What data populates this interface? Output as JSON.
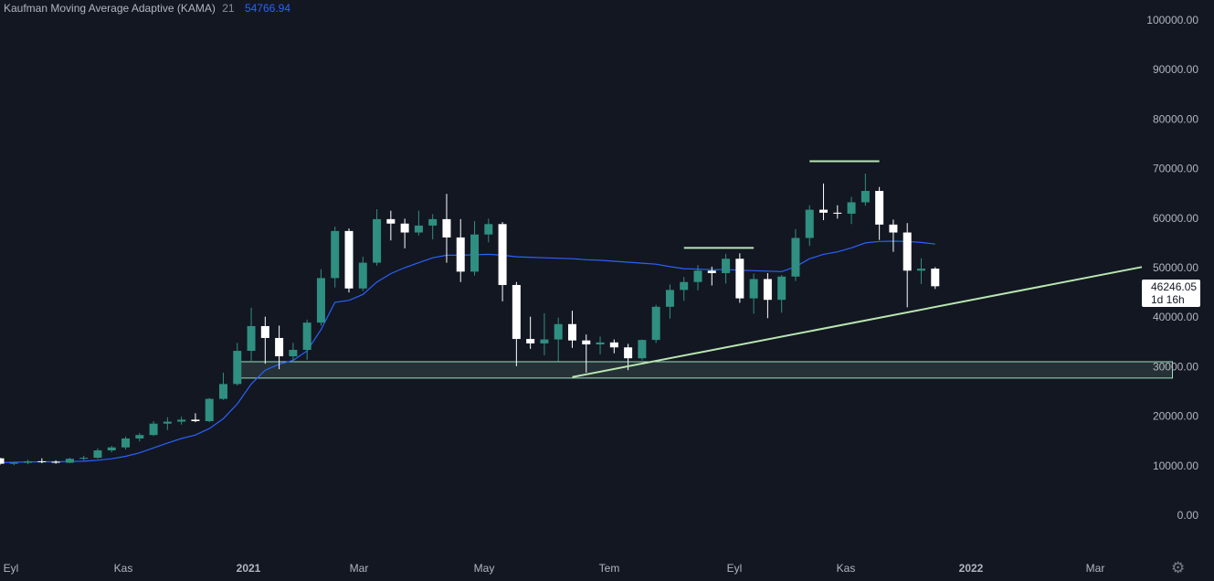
{
  "indicator": {
    "name": "Kaufman Moving Average Adaptive (KAMA)",
    "length": "21",
    "value": "54766.94"
  },
  "price_tag": {
    "price": "46246.05",
    "countdown": "1d 16h"
  },
  "settings_icon": "gear-icon",
  "colors": {
    "background": "#131722",
    "up": "#2f8f80",
    "down": "#ffffff",
    "kama": "#2962ff",
    "lines": "#b8e6b0",
    "zone": "#9fdfc0"
  },
  "chart_data": {
    "type": "candlestick",
    "interval": "1 week",
    "ylim": [
      0,
      100000
    ],
    "y_ticks": [
      "100000.00",
      "90000.00",
      "80000.00",
      "70000.00",
      "60000.00",
      "50000.00",
      "40000.00",
      "30000.00",
      "20000.00",
      "10000.00",
      "0.00"
    ],
    "x_ticks": [
      "Eyl",
      "Kas",
      "2021",
      "Mar",
      "May",
      "Tem",
      "Eyl",
      "Kas",
      "2022",
      "Mar"
    ],
    "x_tick_bold": [
      false,
      false,
      true,
      false,
      false,
      false,
      false,
      false,
      true,
      false
    ],
    "candles": [
      [
        11500,
        11600,
        10200,
        10400
      ],
      [
        10400,
        10800,
        10100,
        10600
      ],
      [
        10600,
        11200,
        10300,
        10900
      ],
      [
        10900,
        11500,
        10500,
        10800
      ],
      [
        10800,
        11100,
        10400,
        10600
      ],
      [
        10600,
        11600,
        10500,
        11400
      ],
      [
        11400,
        12000,
        11100,
        11600
      ],
      [
        11600,
        13500,
        11400,
        13100
      ],
      [
        13100,
        14000,
        12700,
        13700
      ],
      [
        13700,
        15900,
        13300,
        15500
      ],
      [
        15500,
        16600,
        14900,
        16200
      ],
      [
        16200,
        19000,
        16000,
        18500
      ],
      [
        18500,
        19800,
        17200,
        18900
      ],
      [
        18900,
        19900,
        18300,
        19300
      ],
      [
        19300,
        20600,
        18800,
        19000
      ],
      [
        19000,
        23700,
        18800,
        23500
      ],
      [
        23500,
        28800,
        23300,
        26500
      ],
      [
        26500,
        34800,
        26200,
        33200
      ],
      [
        33200,
        41900,
        31000,
        38200
      ],
      [
        38200,
        40100,
        30600,
        35800
      ],
      [
        35800,
        38300,
        29500,
        32100
      ],
      [
        32100,
        34800,
        30900,
        33400
      ],
      [
        33400,
        39500,
        31400,
        38900
      ],
      [
        38900,
        49700,
        38300,
        47900
      ],
      [
        47900,
        58300,
        46000,
        57400
      ],
      [
        57400,
        57900,
        45000,
        45800
      ],
      [
        45800,
        52200,
        45300,
        51000
      ],
      [
        51000,
        61800,
        50400,
        59800
      ],
      [
        59800,
        61500,
        55500,
        58900
      ],
      [
        58900,
        59900,
        53900,
        57100
      ],
      [
        57100,
        61500,
        56500,
        58500
      ],
      [
        58500,
        60800,
        55700,
        59800
      ],
      [
        59800,
        64900,
        51000,
        56100
      ],
      [
        56100,
        59800,
        47100,
        49200
      ],
      [
        49200,
        59400,
        48400,
        56700
      ],
      [
        56700,
        59900,
        55100,
        58800
      ],
      [
        58800,
        59200,
        43200,
        46500
      ],
      [
        46500,
        47100,
        30100,
        35600
      ],
      [
        35600,
        40100,
        33600,
        34700
      ],
      [
        34700,
        40800,
        32300,
        35500
      ],
      [
        35500,
        39900,
        31100,
        38600
      ],
      [
        38600,
        41300,
        33800,
        35300
      ],
      [
        35300,
        36500,
        28800,
        34500
      ],
      [
        34500,
        36100,
        32500,
        34900
      ],
      [
        34900,
        35500,
        32700,
        33900
      ],
      [
        33900,
        34600,
        29300,
        31700
      ],
      [
        31700,
        35500,
        31300,
        35400
      ],
      [
        35400,
        42500,
        34800,
        42100
      ],
      [
        42100,
        46600,
        39700,
        45500
      ],
      [
        45500,
        48100,
        43300,
        47100
      ],
      [
        47100,
        50500,
        45400,
        49400
      ],
      [
        49400,
        50200,
        46400,
        48900
      ],
      [
        48900,
        52800,
        46800,
        51800
      ],
      [
        51800,
        52900,
        42900,
        43800
      ],
      [
        43800,
        48800,
        40700,
        47700
      ],
      [
        47700,
        48900,
        39800,
        43500
      ],
      [
        43500,
        48500,
        40900,
        48200
      ],
      [
        48200,
        57800,
        47300,
        56000
      ],
      [
        56000,
        62600,
        54400,
        61700
      ],
      [
        61700,
        67000,
        59600,
        61100
      ],
      [
        61100,
        62600,
        59900,
        60900
      ],
      [
        60900,
        64300,
        58800,
        63200
      ],
      [
        63200,
        69000,
        62500,
        65500
      ],
      [
        65500,
        66300,
        55600,
        58700
      ],
      [
        58700,
        59700,
        53200,
        57100
      ],
      [
        57100,
        59000,
        42000,
        49400
      ],
      [
        49400,
        51900,
        46700,
        49800
      ],
      [
        49800,
        50100,
        45700,
        46246
      ]
    ],
    "kama": [
      10600,
      10700,
      10750,
      10800,
      10800,
      10850,
      10900,
      11100,
      11400,
      11900,
      12600,
      13600,
      14600,
      15500,
      16200,
      17500,
      19500,
      22500,
      26500,
      29300,
      30500,
      31300,
      33200,
      37500,
      43000,
      43400,
      44600,
      47100,
      48800,
      50000,
      51000,
      52000,
      52500,
      52500,
      52600,
      52700,
      52500,
      52200,
      52100,
      52000,
      51900,
      51800,
      51600,
      51500,
      51300,
      51100,
      50900,
      50700,
      50200,
      49800,
      49700,
      49600,
      49600,
      49500,
      49400,
      49300,
      49200,
      50200,
      51800,
      52700,
      53200,
      54000,
      55000,
      55300,
      55350,
      55300,
      55100,
      54767
    ],
    "zone": {
      "y_low": 27700,
      "y_high": 31000,
      "x_start": 17,
      "x_end": 84
    },
    "trendline": {
      "x1": 41,
      "y1": 27900,
      "x2": 88,
      "y2": 53500
    },
    "resistance_lines": [
      {
        "y": 54000,
        "x_start": 49,
        "x_end": 54
      },
      {
        "y": 71500,
        "x_start": 58,
        "x_end": 63
      }
    ],
    "last_price": 46246.05
  }
}
